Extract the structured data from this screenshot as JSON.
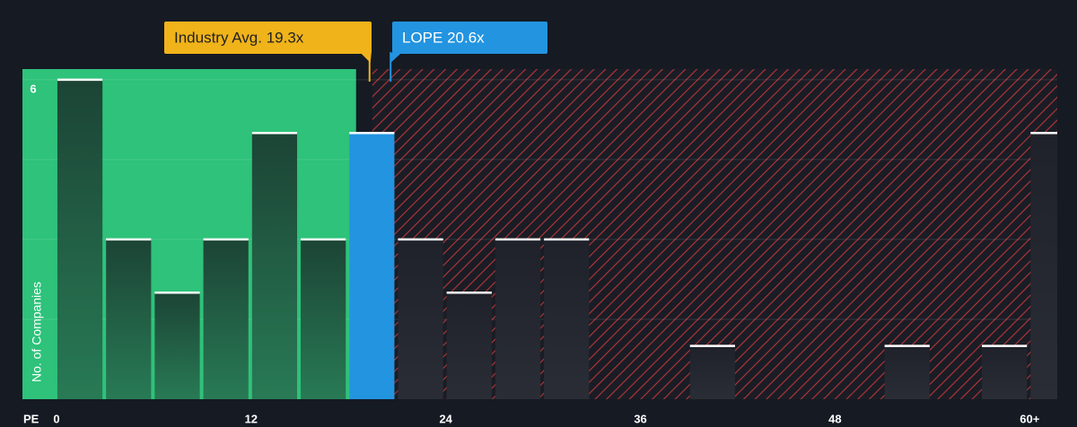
{
  "chart_data": {
    "type": "histogram",
    "x_label": "PE",
    "y_label": "No. of Companies",
    "bins": [
      0,
      3,
      6,
      9,
      12,
      15,
      18,
      21,
      24,
      27,
      30,
      33,
      36,
      39,
      42,
      45,
      48,
      51,
      54,
      57,
      60,
      63
    ],
    "values": [
      6,
      3,
      2,
      3,
      5,
      3,
      5,
      3,
      2,
      3,
      3,
      0,
      0,
      1,
      0,
      0,
      0,
      1,
      0,
      1,
      5
    ],
    "highlight_index": 6,
    "color": "#1e4436",
    "highlight_color": "#2394e0",
    "xlim": [
      -2.1,
      61.7
    ],
    "ylim": [
      0,
      6.2
    ],
    "xticks": [
      0,
      12,
      24,
      36,
      48,
      {
        "value": 60,
        "label": "60+"
      }
    ],
    "yticks": [
      6
    ],
    "ygrid": [
      1.5,
      3,
      4.5,
      6
    ],
    "annotations": [
      {
        "label": "Industry Avg. 19.3x",
        "value": 19.3,
        "color": "#f0b31a"
      },
      {
        "label": "LOPE 20.6x",
        "value": 20.6,
        "color": "#2394e0"
      }
    ]
  }
}
